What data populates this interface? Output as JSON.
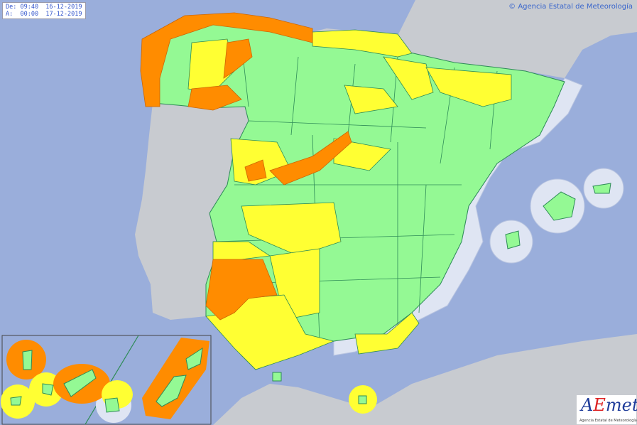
{
  "validity": {
    "from_label": "De:",
    "from_value": "09:40  16-12-2019",
    "to_label": "A:",
    "to_value": "00:00  17-12-2019"
  },
  "credit": "© Agencia Estatal de Meteorología",
  "logo": {
    "name": "AEMet",
    "subtitle": "Agencia Estatal de Meteorología"
  },
  "colors": {
    "sea": "#9aaedb",
    "foreign_land": "#c8cbd0",
    "green_no_risk": "#94f994",
    "yellow_warning": "#ffff33",
    "orange_warning": "#ff8c00",
    "coastal_no_risk": "#dfe5f3",
    "borders": "#2e8b57"
  },
  "map": {
    "region": "Spain",
    "inset": "Canary Islands"
  }
}
